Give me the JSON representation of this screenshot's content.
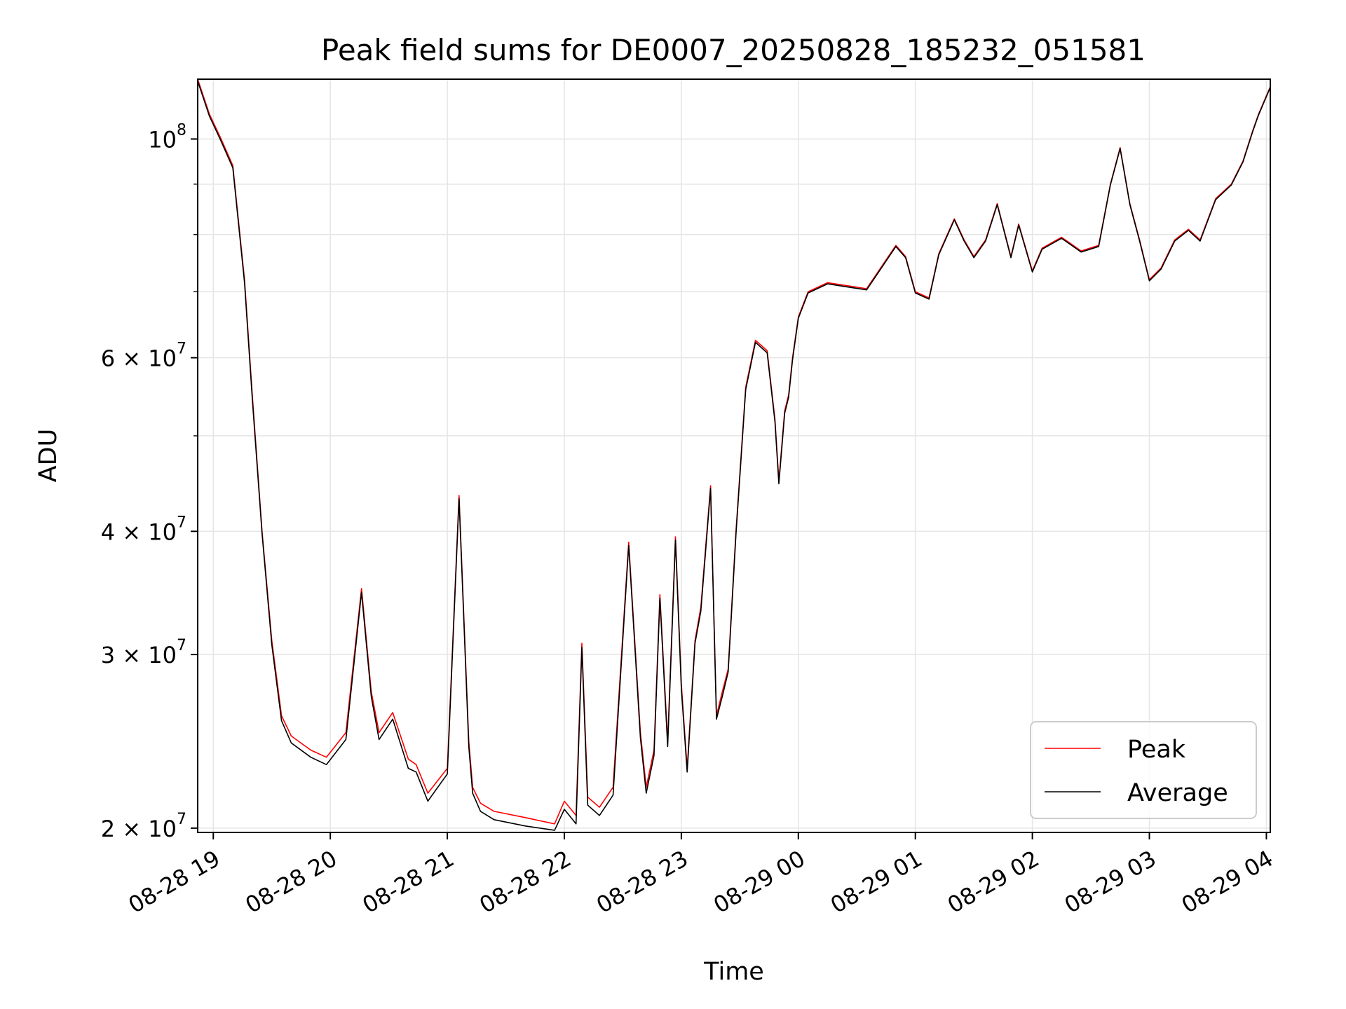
{
  "chart_data": {
    "type": "line",
    "title": "Peak field sums for DE0007_20250828_185232_051581",
    "xlabel": "Time",
    "ylabel": "ADU",
    "yscale": "log",
    "ylim": [
      19800000,
      115000000
    ],
    "xlim": [
      "2025-08-28 18:52",
      "2025-08-29 04:02"
    ],
    "grid": true,
    "legend_position": "lower-right",
    "x_ticks": [
      {
        "value": "2025-08-28 19:00",
        "label": "08-28 19"
      },
      {
        "value": "2025-08-28 20:00",
        "label": "08-28 20"
      },
      {
        "value": "2025-08-28 21:00",
        "label": "08-28 21"
      },
      {
        "value": "2025-08-28 22:00",
        "label": "08-28 22"
      },
      {
        "value": "2025-08-28 23:00",
        "label": "08-28 23"
      },
      {
        "value": "2025-08-29 00:00",
        "label": "08-29 00"
      },
      {
        "value": "2025-08-29 01:00",
        "label": "08-29 01"
      },
      {
        "value": "2025-08-29 02:00",
        "label": "08-29 02"
      },
      {
        "value": "2025-08-29 03:00",
        "label": "08-29 03"
      },
      {
        "value": "2025-08-29 04:00",
        "label": "08-29 04"
      }
    ],
    "y_ticks": [
      {
        "value": 20000000,
        "mantissa": "2 × 10",
        "exp": "7"
      },
      {
        "value": 30000000,
        "mantissa": "3 × 10",
        "exp": "7"
      },
      {
        "value": 40000000,
        "mantissa": "4 × 10",
        "exp": "7"
      },
      {
        "value": 60000000,
        "mantissa": "6 × 10",
        "exp": "7"
      },
      {
        "value": 100000000,
        "mantissa": "10",
        "exp": "8"
      }
    ],
    "y_minor_ticks": [
      50000000,
      70000000,
      80000000,
      90000000
    ],
    "series": [
      {
        "name": "Peak",
        "color": "#ff0000",
        "x": [
          "2025-08-28 18:52",
          "2025-08-28 18:58",
          "2025-08-28 19:04",
          "2025-08-28 19:10",
          "2025-08-28 19:16",
          "2025-08-28 19:20",
          "2025-08-28 19:25",
          "2025-08-28 19:30",
          "2025-08-28 19:35",
          "2025-08-28 19:40",
          "2025-08-28 19:50",
          "2025-08-28 19:58",
          "2025-08-28 20:08",
          "2025-08-28 20:16",
          "2025-08-28 20:21",
          "2025-08-28 20:25",
          "2025-08-28 20:32",
          "2025-08-28 20:40",
          "2025-08-28 20:44",
          "2025-08-28 20:50",
          "2025-08-28 21:00",
          "2025-08-28 21:06",
          "2025-08-28 21:11",
          "2025-08-28 21:13",
          "2025-08-28 21:17",
          "2025-08-28 21:24",
          "2025-08-28 21:40",
          "2025-08-28 21:55",
          "2025-08-28 22:00",
          "2025-08-28 22:06",
          "2025-08-28 22:09",
          "2025-08-28 22:12",
          "2025-08-28 22:18",
          "2025-08-28 22:25",
          "2025-08-28 22:33",
          "2025-08-28 22:39",
          "2025-08-28 22:42",
          "2025-08-28 22:46",
          "2025-08-28 22:49",
          "2025-08-28 22:53",
          "2025-08-28 22:57",
          "2025-08-28 23:00",
          "2025-08-28 23:03",
          "2025-08-28 23:07",
          "2025-08-28 23:10",
          "2025-08-28 23:15",
          "2025-08-28 23:18",
          "2025-08-28 23:21",
          "2025-08-28 23:24",
          "2025-08-28 23:28",
          "2025-08-28 23:33",
          "2025-08-28 23:38",
          "2025-08-28 23:44",
          "2025-08-28 23:48",
          "2025-08-28 23:50",
          "2025-08-28 23:53",
          "2025-08-28 23:55",
          "2025-08-28 23:57",
          "2025-08-29 00:00",
          "2025-08-29 00:05",
          "2025-08-29 00:15",
          "2025-08-29 00:25",
          "2025-08-29 00:35",
          "2025-08-29 00:50",
          "2025-08-29 00:55",
          "2025-08-29 01:00",
          "2025-08-29 01:07",
          "2025-08-29 01:12",
          "2025-08-29 01:20",
          "2025-08-29 01:25",
          "2025-08-29 01:30",
          "2025-08-29 01:36",
          "2025-08-29 01:42",
          "2025-08-29 01:49",
          "2025-08-29 01:53",
          "2025-08-29 02:00",
          "2025-08-29 02:05",
          "2025-08-29 02:15",
          "2025-08-29 02:25",
          "2025-08-29 02:34",
          "2025-08-29 02:40",
          "2025-08-29 02:45",
          "2025-08-29 02:50",
          "2025-08-29 02:55",
          "2025-08-29 03:00",
          "2025-08-29 03:06",
          "2025-08-29 03:13",
          "2025-08-29 03:20",
          "2025-08-29 03:26",
          "2025-08-29 03:34",
          "2025-08-29 03:42",
          "2025-08-29 03:48",
          "2025-08-29 03:53",
          "2025-08-29 03:56",
          "2025-08-29 04:02"
        ],
        "values": [
          115000000,
          106000000,
          100000000,
          94000000,
          72000000,
          55000000,
          40000000,
          31000000,
          26000000,
          24800000,
          24000000,
          23600000,
          25000000,
          35000000,
          27500000,
          25000000,
          26200000,
          23500000,
          23200000,
          21700000,
          23000000,
          43500000,
          24500000,
          22000000,
          21200000,
          20800000,
          20500000,
          20200000,
          21300000,
          20600000,
          30800000,
          21500000,
          21000000,
          22000000,
          39000000,
          25000000,
          22000000,
          24000000,
          34500000,
          24500000,
          39500000,
          28000000,
          23000000,
          31000000,
          33500000,
          44500000,
          26000000,
          27500000,
          29000000,
          40000000,
          56000000,
          62500000,
          61000000,
          52000000,
          45000000,
          53000000,
          55000000,
          60000000,
          66000000,
          70000000,
          71500000,
          71000000,
          70500000,
          78000000,
          76000000,
          70000000,
          69000000,
          76500000,
          83000000,
          79000000,
          76000000,
          79000000,
          86000000,
          76000000,
          82000000,
          73500000,
          77500000,
          79500000,
          77000000,
          78000000,
          90000000,
          98000000,
          86000000,
          79000000,
          72000000,
          74000000,
          79000000,
          81000000,
          79000000,
          87000000,
          90000000,
          95000000,
          102000000,
          106000000,
          113000000
        ]
      },
      {
        "name": "Average",
        "color": "#000000",
        "x": [
          "2025-08-28 18:52",
          "2025-08-28 18:58",
          "2025-08-28 19:04",
          "2025-08-28 19:10",
          "2025-08-28 19:16",
          "2025-08-28 19:20",
          "2025-08-28 19:25",
          "2025-08-28 19:30",
          "2025-08-28 19:35",
          "2025-08-28 19:40",
          "2025-08-28 19:50",
          "2025-08-28 19:58",
          "2025-08-28 20:08",
          "2025-08-28 20:16",
          "2025-08-28 20:21",
          "2025-08-28 20:25",
          "2025-08-28 20:32",
          "2025-08-28 20:40",
          "2025-08-28 20:44",
          "2025-08-28 20:50",
          "2025-08-28 21:00",
          "2025-08-28 21:06",
          "2025-08-28 21:11",
          "2025-08-28 21:13",
          "2025-08-28 21:17",
          "2025-08-28 21:24",
          "2025-08-28 21:40",
          "2025-08-28 21:55",
          "2025-08-28 22:00",
          "2025-08-28 22:06",
          "2025-08-28 22:09",
          "2025-08-28 22:12",
          "2025-08-28 22:18",
          "2025-08-28 22:25",
          "2025-08-28 22:33",
          "2025-08-28 22:39",
          "2025-08-28 22:42",
          "2025-08-28 22:46",
          "2025-08-28 22:49",
          "2025-08-28 22:53",
          "2025-08-28 22:57",
          "2025-08-28 23:00",
          "2025-08-28 23:03",
          "2025-08-28 23:07",
          "2025-08-28 23:10",
          "2025-08-28 23:15",
          "2025-08-28 23:18",
          "2025-08-28 23:21",
          "2025-08-28 23:24",
          "2025-08-28 23:28",
          "2025-08-28 23:33",
          "2025-08-28 23:38",
          "2025-08-28 23:44",
          "2025-08-28 23:48",
          "2025-08-28 23:50",
          "2025-08-28 23:53",
          "2025-08-28 23:55",
          "2025-08-28 23:57",
          "2025-08-29 00:00",
          "2025-08-29 00:05",
          "2025-08-29 00:15",
          "2025-08-29 00:25",
          "2025-08-29 00:35",
          "2025-08-29 00:50",
          "2025-08-29 00:55",
          "2025-08-29 01:00",
          "2025-08-29 01:07",
          "2025-08-29 01:12",
          "2025-08-29 01:20",
          "2025-08-29 01:25",
          "2025-08-29 01:30",
          "2025-08-29 01:36",
          "2025-08-29 01:42",
          "2025-08-29 01:49",
          "2025-08-29 01:53",
          "2025-08-29 02:00",
          "2025-08-29 02:05",
          "2025-08-29 02:15",
          "2025-08-29 02:25",
          "2025-08-29 02:34",
          "2025-08-29 02:40",
          "2025-08-29 02:45",
          "2025-08-29 02:50",
          "2025-08-29 02:55",
          "2025-08-29 03:00",
          "2025-08-29 03:06",
          "2025-08-29 03:13",
          "2025-08-29 03:20",
          "2025-08-29 03:26",
          "2025-08-29 03:34",
          "2025-08-29 03:42",
          "2025-08-29 03:48",
          "2025-08-29 03:53",
          "2025-08-29 03:56",
          "2025-08-29 04:02"
        ],
        "values": [
          114500000,
          105500000,
          99500000,
          93500000,
          71500000,
          54500000,
          39800000,
          30700000,
          25700000,
          24400000,
          23600000,
          23200000,
          24600000,
          34700000,
          27200000,
          24600000,
          25800000,
          23000000,
          22800000,
          21300000,
          22700000,
          43200000,
          24200000,
          21700000,
          20800000,
          20400000,
          20100000,
          19900000,
          20900000,
          20200000,
          30500000,
          21100000,
          20600000,
          21600000,
          38700000,
          24700000,
          21700000,
          23700000,
          34200000,
          24200000,
          39200000,
          27700000,
          22800000,
          30800000,
          33200000,
          44200000,
          25800000,
          27200000,
          28800000,
          39700000,
          55700000,
          62200000,
          60700000,
          51700000,
          44700000,
          52700000,
          54700000,
          59700000,
          65800000,
          69800000,
          71300000,
          70800000,
          70300000,
          77800000,
          75800000,
          69800000,
          68800000,
          76300000,
          82800000,
          78800000,
          75800000,
          78800000,
          85800000,
          75800000,
          81800000,
          73300000,
          77300000,
          79300000,
          76800000,
          77800000,
          89800000,
          97800000,
          85800000,
          78800000,
          71800000,
          73800000,
          78800000,
          80800000,
          78800000,
          86800000,
          89800000,
          94800000,
          101800000,
          105800000,
          112800000
        ]
      }
    ]
  }
}
